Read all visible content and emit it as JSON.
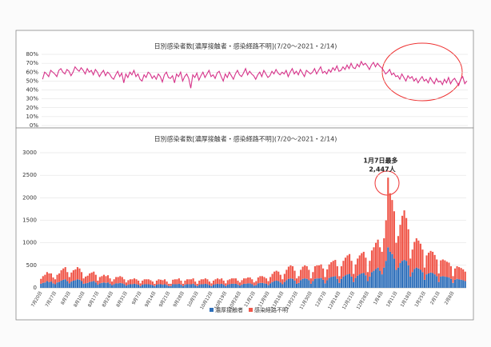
{
  "chart_data": [
    {
      "type": "line",
      "title": "日別感染者数[濃厚接触者・感染経路不明](7/20～2021・2/14)",
      "color": "#d6338a",
      "grid": true,
      "ylim": [
        0,
        80
      ],
      "yticks": [
        {
          "value": 0,
          "label": "0%"
        },
        {
          "value": 10,
          "label": "10%"
        },
        {
          "value": 20,
          "label": "20%"
        },
        {
          "value": 30,
          "label": "30%"
        },
        {
          "value": 40,
          "label": "40%"
        },
        {
          "value": 50,
          "label": "50%"
        },
        {
          "value": 60,
          "label": "60%"
        },
        {
          "value": 70,
          "label": "70%"
        },
        {
          "value": 80,
          "label": "80%"
        }
      ],
      "values": [
        52,
        60,
        58,
        55,
        62,
        60,
        58,
        55,
        62,
        64,
        60,
        58,
        63,
        61,
        56,
        60,
        66,
        63,
        61,
        65,
        62,
        58,
        64,
        60,
        62,
        57,
        63,
        60,
        55,
        59,
        62,
        56,
        60,
        58,
        54,
        52,
        57,
        61,
        55,
        59,
        48,
        58,
        54,
        60,
        57,
        62,
        55,
        58,
        52,
        50,
        57,
        54,
        60,
        58,
        53,
        56,
        52,
        58,
        55,
        49,
        57,
        60,
        54,
        53,
        56,
        48,
        58,
        55,
        60,
        50,
        55,
        58,
        53,
        42,
        57,
        54,
        59,
        51,
        56,
        60,
        54,
        58,
        62,
        55,
        57,
        53,
        59,
        61,
        55,
        50,
        58,
        54,
        60,
        56,
        52,
        58,
        62,
        57,
        55,
        59,
        64,
        57,
        61,
        58,
        56,
        52,
        57,
        60,
        55,
        62,
        58,
        54,
        56,
        61,
        58,
        63,
        59,
        57,
        60,
        58,
        62,
        55,
        60,
        64,
        58,
        61,
        57,
        63,
        59,
        55,
        62,
        60,
        58,
        60,
        64,
        58,
        62,
        66,
        59,
        61,
        58,
        63,
        60,
        65,
        62,
        67,
        61,
        62,
        66,
        63,
        68,
        64,
        70,
        65,
        64,
        69,
        66,
        72,
        68,
        70,
        67,
        63,
        68,
        71,
        66,
        70,
        67,
        65,
        62,
        58,
        60,
        63,
        57,
        59,
        55,
        56,
        52,
        58,
        54,
        50,
        56,
        53,
        55,
        50,
        53,
        48,
        52,
        55,
        50,
        52,
        48,
        54,
        50,
        47,
        53,
        49,
        50,
        46,
        52,
        48,
        54,
        47,
        51,
        53,
        49,
        45,
        52,
        55,
        47,
        50
      ]
    },
    {
      "type": "bar",
      "stacked": true,
      "title": "日別感染者数[濃厚接触者・感染経路不明](7/20～2021・2/14)",
      "annotation": [
        "1月7日最多",
        "2,447人"
      ],
      "ylim": [
        0,
        3000
      ],
      "yticks": [
        0,
        500,
        1000,
        1500,
        2000,
        2500,
        3000
      ],
      "grid": true,
      "legend": "bottom",
      "categories": [
        "7月20日",
        null,
        null,
        null,
        null,
        null,
        null,
        "7月27日",
        null,
        null,
        null,
        null,
        null,
        null,
        "8月3日",
        null,
        null,
        null,
        null,
        null,
        null,
        "8月10日",
        null,
        null,
        null,
        null,
        null,
        null,
        "8月17日",
        null,
        null,
        null,
        null,
        null,
        null,
        "8月24日",
        null,
        null,
        null,
        null,
        null,
        null,
        "8月31日",
        null,
        null,
        null,
        null,
        null,
        null,
        "9月7日",
        null,
        null,
        null,
        null,
        null,
        null,
        "9月14日",
        null,
        null,
        null,
        null,
        null,
        null,
        "9月21日",
        null,
        null,
        null,
        null,
        null,
        null,
        "9月28日",
        null,
        null,
        null,
        null,
        null,
        null,
        "10月5日",
        null,
        null,
        null,
        null,
        null,
        null,
        "10月12日",
        null,
        null,
        null,
        null,
        null,
        null,
        "10月19日",
        null,
        null,
        null,
        null,
        null,
        null,
        "10月26日",
        null,
        null,
        null,
        null,
        null,
        null,
        "11月2日",
        null,
        null,
        null,
        null,
        null,
        null,
        "11月9日",
        null,
        null,
        null,
        null,
        null,
        null,
        "11月16日",
        null,
        null,
        null,
        null,
        null,
        null,
        "11月23日",
        null,
        null,
        null,
        null,
        null,
        null,
        "11月30日",
        null,
        null,
        null,
        null,
        null,
        null,
        "12月7日",
        null,
        null,
        null,
        null,
        null,
        null,
        "12月14日",
        null,
        null,
        null,
        null,
        null,
        null,
        "12月21日",
        null,
        null,
        null,
        null,
        null,
        null,
        "12月28日",
        null,
        null,
        null,
        null,
        null,
        null,
        "1月4日",
        null,
        null,
        null,
        null,
        null,
        null,
        "1月11日",
        null,
        null,
        null,
        null,
        null,
        null,
        "1月18日",
        null,
        null,
        null,
        null,
        null,
        null,
        "1月25日",
        null,
        null,
        null,
        null,
        null,
        null,
        "2月1日",
        null,
        null,
        null,
        null,
        null,
        null,
        "2月8日",
        null,
        null,
        null,
        null,
        null,
        null
      ],
      "series": [
        {
          "name": "濃厚接触者",
          "color": "#2e6fba",
          "values": [
            90,
            110,
            120,
            150,
            130,
            140,
            100,
            80,
            120,
            130,
            160,
            180,
            190,
            150,
            100,
            140,
            160,
            170,
            190,
            180,
            150,
            90,
            100,
            110,
            130,
            140,
            150,
            120,
            70,
            100,
            110,
            120,
            110,
            120,
            90,
            60,
            80,
            100,
            100,
            110,
            100,
            80,
            50,
            70,
            80,
            80,
            90,
            80,
            70,
            40,
            70,
            80,
            80,
            80,
            70,
            60,
            40,
            70,
            80,
            80,
            70,
            80,
            60,
            40,
            40,
            80,
            80,
            80,
            90,
            70,
            40,
            70,
            80,
            80,
            80,
            90,
            60,
            40,
            70,
            80,
            80,
            90,
            80,
            60,
            40,
            70,
            80,
            90,
            80,
            90,
            70,
            40,
            70,
            80,
            90,
            90,
            90,
            70,
            50,
            70,
            90,
            90,
            100,
            100,
            80,
            50,
            60,
            100,
            110,
            110,
            100,
            90,
            60,
            100,
            130,
            150,
            160,
            150,
            120,
            80,
            130,
            170,
            200,
            210,
            200,
            160,
            90,
            110,
            170,
            200,
            210,
            200,
            170,
            90,
            150,
            200,
            210,
            210,
            220,
            180,
            100,
            170,
            220,
            240,
            250,
            260,
            200,
            110,
            200,
            250,
            280,
            300,
            310,
            250,
            130,
            220,
            270,
            300,
            320,
            330,
            280,
            150,
            250,
            350,
            380,
            420,
            450,
            380,
            300,
            450,
            600,
            900,
            800,
            750,
            650,
            400,
            450,
            550,
            600,
            620,
            600,
            500,
            250,
            350,
            420,
            450,
            430,
            400,
            350,
            180,
            300,
            320,
            340,
            330,
            300,
            260,
            130,
            250,
            260,
            250,
            240,
            230,
            200,
            110,
            180,
            200,
            190,
            180,
            170,
            150
          ]
        },
        {
          "name": "感染経路不明",
          "color": "#f0574a",
          "values": [
            110,
            150,
            170,
            200,
            190,
            180,
            130,
            110,
            170,
            190,
            230,
            250,
            270,
            200,
            140,
            200,
            230,
            240,
            270,
            250,
            200,
            120,
            150,
            160,
            190,
            200,
            210,
            170,
            90,
            140,
            150,
            170,
            150,
            160,
            120,
            80,
            110,
            140,
            140,
            150,
            140,
            110,
            70,
            100,
            110,
            110,
            120,
            110,
            90,
            60,
            90,
            110,
            110,
            110,
            100,
            80,
            50,
            90,
            110,
            100,
            100,
            110,
            80,
            50,
            50,
            100,
            110,
            110,
            120,
            90,
            50,
            90,
            110,
            110,
            110,
            120,
            80,
            50,
            90,
            110,
            110,
            120,
            110,
            80,
            60,
            90,
            110,
            120,
            110,
            120,
            90,
            60,
            100,
            110,
            120,
            120,
            120,
            90,
            70,
            100,
            120,
            120,
            130,
            130,
            110,
            70,
            90,
            130,
            150,
            150,
            140,
            120,
            90,
            140,
            180,
            210,
            220,
            210,
            170,
            110,
            180,
            230,
            270,
            290,
            280,
            220,
            120,
            150,
            230,
            270,
            290,
            280,
            230,
            120,
            200,
            280,
            290,
            290,
            300,
            250,
            140,
            240,
            300,
            330,
            350,
            360,
            280,
            150,
            280,
            350,
            390,
            420,
            440,
            350,
            180,
            300,
            380,
            420,
            450,
            470,
            390,
            200,
            350,
            480,
            520,
            580,
            620,
            520,
            500,
            650,
            900,
            1547,
            1300,
            1200,
            1050,
            600,
            700,
            850,
            1000,
            1100,
            950,
            800,
            400,
            500,
            600,
            650,
            620,
            580,
            500,
            270,
            420,
            460,
            480,
            470,
            430,
            370,
            190,
            360,
            370,
            360,
            340,
            330,
            280,
            150,
            250,
            280,
            270,
            260,
            240,
            210
          ]
        }
      ]
    }
  ]
}
